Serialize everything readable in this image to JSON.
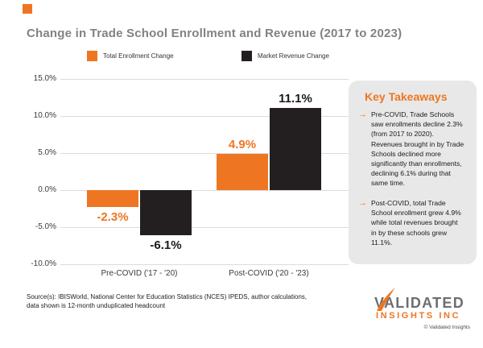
{
  "brand": {
    "orange": "#EE7623",
    "dark": "#231F20",
    "title_gray": "#808285",
    "panel_gray": "#E9E8E8"
  },
  "title": "Change in Trade School Enrollment and Revenue (2017 to 2023)",
  "chart_data": {
    "type": "bar",
    "title": "Change in Trade School Enrollment and Revenue (2017 to 2023)",
    "categories": [
      "Pre-COVID ('17 - '20)",
      "Post-COVID ('20 - '23)"
    ],
    "series": [
      {
        "name": "Total Enrollment Change",
        "color": "#EE7623",
        "values": [
          -2.3,
          4.9
        ],
        "labels": [
          "-2.3%",
          "4.9%"
        ]
      },
      {
        "name": "Market Revenue Change",
        "color": "#231F20",
        "values": [
          -6.1,
          11.1
        ],
        "labels": [
          "-6.1%",
          "11.1%"
        ]
      }
    ],
    "y_axis": {
      "ticks": [
        "15.0%",
        "10.0%",
        "5.0%",
        "0.0%",
        "-5.0%",
        "-10.0%"
      ],
      "min": -10,
      "max": 15,
      "step": 5,
      "unit": "%"
    },
    "grid": true,
    "legend_position": "top"
  },
  "key_takeaways": {
    "title": "Key Takeaways",
    "bullets": [
      "Pre-COVID, Trade Schools saw enrollments decline 2.3% (from 2017 to 2020). Revenues brought in by Trade Schools declined more significantly than enrollments, declining 6.1% during that same time.",
      "Post-COVID, total Trade School enrollment grew 4.9% while total revenues brought in by these schools grew 11.1%."
    ],
    "bullet_glyph": "→"
  },
  "source": {
    "lines": [
      "Source(s): IBISWorld, National Center for Education Statistics (NCES) IPEDS, author calculations,",
      "data shown is 12-month unduplicated headcount"
    ]
  },
  "logo": {
    "wordmark": "VALIDATED",
    "subline": "INSIGHTS INC",
    "copyright": "© Validated Insights"
  }
}
